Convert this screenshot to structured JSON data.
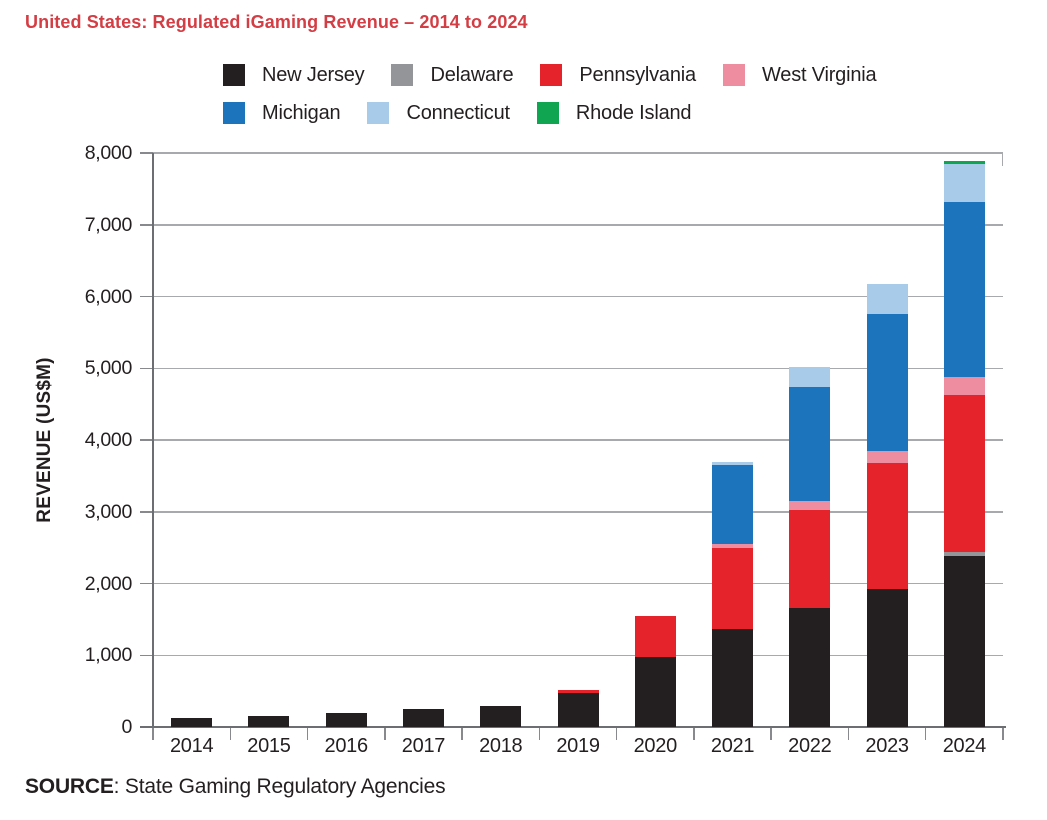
{
  "title": "United States: Regulated iGaming Revenue – 2014 to 2024",
  "source": {
    "bold": "SOURCE",
    "rest": ": State Gaming Regulatory Agencies"
  },
  "colors": {
    "title_red": "#d43d44",
    "gridline": "#a7a9ac",
    "axis": "#6d6e71",
    "text": "#231f20"
  },
  "chart_data": {
    "type": "bar",
    "stacked": true,
    "title": "United States: Regulated iGaming Revenue – 2014 to 2024",
    "categories": [
      "2014",
      "2015",
      "2016",
      "2017",
      "2018",
      "2019",
      "2020",
      "2021",
      "2022",
      "2023",
      "2024"
    ],
    "series": [
      {
        "name": "New Jersey",
        "color": "#231f20",
        "values": [
          123,
          149,
          197,
          246,
          299,
          470,
          970,
          1365,
          1660,
          1920,
          2385
        ]
      },
      {
        "name": "Delaware",
        "color": "#939598",
        "values": [
          0,
          0,
          0,
          0,
          0,
          0,
          0,
          0,
          0,
          0,
          60
        ]
      },
      {
        "name": "Pennsylvania",
        "color": "#e5232b",
        "values": [
          0,
          0,
          0,
          0,
          0,
          45,
          575,
          1125,
          1365,
          1755,
          2180
        ]
      },
      {
        "name": "West Virginia",
        "color": "#ef8da0",
        "values": [
          0,
          0,
          0,
          0,
          0,
          0,
          0,
          60,
          125,
          170,
          255
        ]
      },
      {
        "name": "Michigan",
        "color": "#1c75bc",
        "values": [
          0,
          0,
          0,
          0,
          0,
          0,
          0,
          1105,
          1590,
          1910,
          2440
        ]
      },
      {
        "name": "Connecticut",
        "color": "#a8cbea",
        "values": [
          0,
          0,
          0,
          0,
          0,
          0,
          0,
          45,
          280,
          415,
          530
        ]
      },
      {
        "name": "Rhode Island",
        "color": "#10a551",
        "values": [
          0,
          0,
          0,
          0,
          0,
          0,
          0,
          0,
          0,
          0,
          40
        ]
      }
    ],
    "xlabel": "",
    "ylabel": "REVENUE (US$M)",
    "ylim": [
      0,
      8000
    ],
    "ytick_step": 1000,
    "grid": true,
    "legend_position": "top",
    "legend_rows": [
      4,
      3
    ]
  }
}
